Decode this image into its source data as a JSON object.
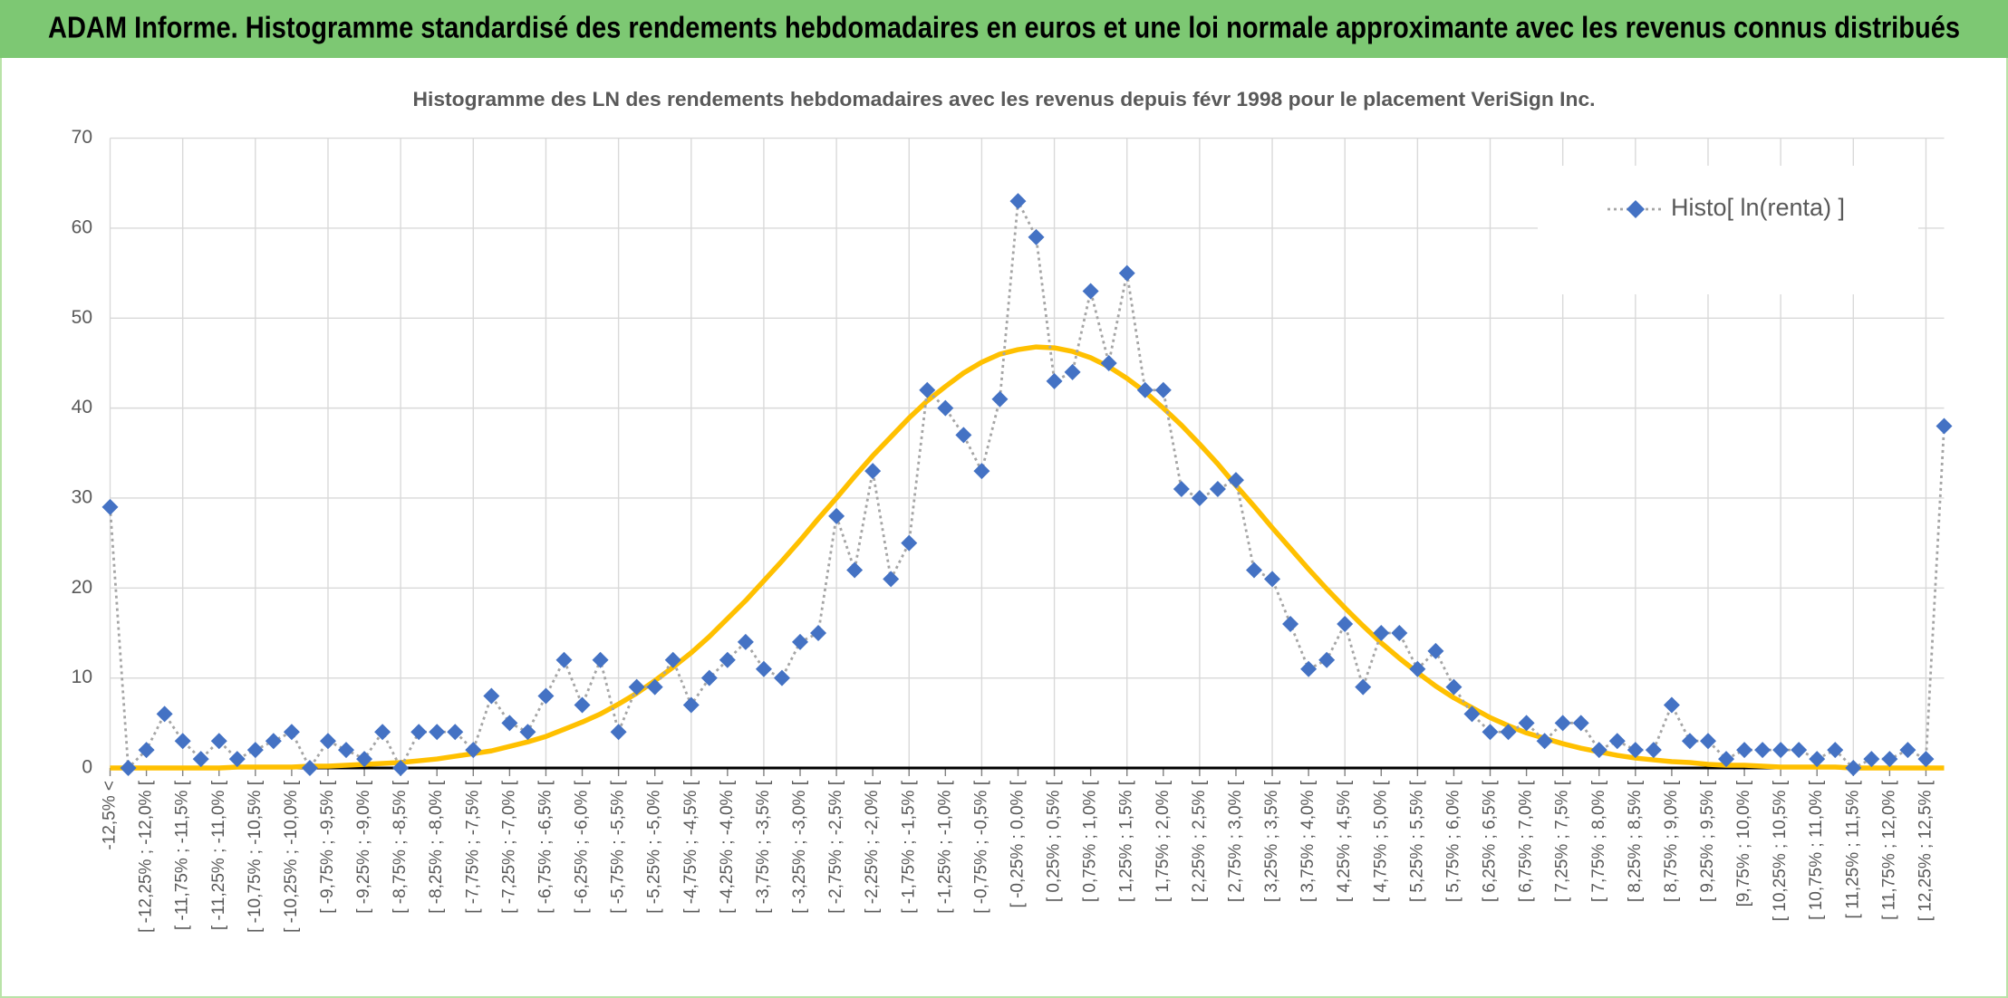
{
  "header": {
    "title": "ADAM Informe. Histogramme standardisé des rendements hebdomadaires en euros et une loi normale approximante avec les revenus connus distribués"
  },
  "chart_data": {
    "type": "line",
    "title": "Histogramme des LN des rendements hebdomadaires avec les revenus depuis févr 1998 pour le placement VeriSign Inc.",
    "categories": [
      "-12,5% <",
      null,
      "[ -12,25% ; -12,0% [",
      null,
      "[ -11,75% ; -11,5% [",
      null,
      "[ -11,25% ; -11,0% [",
      null,
      "[ -10,75% ; -10,5% [",
      null,
      "[ -10,25% ; -10,0% [",
      null,
      "[ -9,75% ; -9,5% [",
      null,
      "[ -9,25% ; -9,0% [",
      null,
      "[ -8,75% ; -8,5% [",
      null,
      "[ -8,25% ; -8,0% [",
      null,
      "[ -7,75% ; -7,5% [",
      null,
      "[ -7,25% ; -7,0% [",
      null,
      "[ -6,75% ; -6,5% [",
      null,
      "[ -6,25% ; -6,0% [",
      null,
      "[ -5,75% ; -5,5% [",
      null,
      "[ -5,25% ; -5,0% [",
      null,
      "[ -4,75% ; -4,5% [",
      null,
      "[ -4,25% ; -4,0% [",
      null,
      "[ -3,75% ; -3,5% [",
      null,
      "[ -3,25% ; -3,0% [",
      null,
      "[ -2,75% ; -2,5% [",
      null,
      "[ -2,25% ; -2,0% [",
      null,
      "[ -1,75% ; -1,5% [",
      null,
      "[ -1,25% ; -1,0% [",
      null,
      "[ -0,75% ; -0,5% [",
      null,
      "[ -0,25% ; 0,0% [",
      null,
      "[ 0,25% ; 0,5% [",
      null,
      "[ 0,75% ; 1,0% [",
      null,
      "[ 1,25% ; 1,5% [",
      null,
      "[ 1,75% ; 2,0% [",
      null,
      "[ 2,25% ; 2,5% [",
      null,
      "[ 2,75% ; 3,0% [",
      null,
      "[ 3,25% ; 3,5% [",
      null,
      "[ 3,75% ; 4,0% [",
      null,
      "[ 4,25% ; 4,5% [",
      null,
      "[ 4,75% ; 5,0% [",
      null,
      "[ 5,25% ; 5,5% [",
      null,
      "[ 5,75% ; 6,0% [",
      null,
      "[ 6,25% ; 6,5% [",
      null,
      "[ 6,75% ; 7,0% [",
      null,
      "[ 7,25% ; 7,5% [",
      null,
      "[ 7,75% ; 8,0% [",
      null,
      "[ 8,25% ; 8,5% [",
      null,
      "[ 8,75% ; 9,0% [",
      null,
      "[ 9,25% ; 9,5% [",
      null,
      "[9,75% ; 10,0% [",
      null,
      "[ 10,25% ; 10,5% [",
      null,
      "[ 10,75% ; 11,0% [",
      null,
      "[ 11,25% ; 11,5% [",
      null,
      "[ 11,75% ; 12,0% [",
      null,
      "[ 12,25% ; 12,5% [",
      null
    ],
    "series": [
      {
        "name": "Histo[ ln(renta) ]",
        "color": "#4472c4",
        "line_color": "#a5a5a5",
        "marker": "diamond",
        "values": [
          29,
          0,
          2,
          6,
          3,
          1,
          3,
          1,
          2,
          3,
          4,
          0,
          3,
          2,
          1,
          4,
          0,
          4,
          4,
          4,
          2,
          8,
          5,
          4,
          8,
          12,
          7,
          12,
          4,
          9,
          9,
          12,
          7,
          10,
          12,
          14,
          11,
          10,
          14,
          15,
          28,
          22,
          33,
          21,
          25,
          42,
          40,
          37,
          33,
          41,
          63,
          59,
          43,
          44,
          53,
          45,
          55,
          42,
          42,
          31,
          30,
          31,
          32,
          22,
          21,
          16,
          11,
          12,
          16,
          9,
          15,
          15,
          11,
          13,
          9,
          6,
          4,
          4,
          5,
          3,
          5,
          5,
          2,
          3,
          2,
          2,
          7,
          3,
          3,
          1,
          2,
          2,
          2,
          2,
          1,
          2,
          0,
          1,
          1,
          2,
          1,
          38
        ]
      },
      {
        "color": "#ffc000",
        "values": [
          0,
          0,
          0,
          0,
          0,
          0,
          0,
          0.1,
          0.1,
          0.1,
          0.1,
          0.2,
          0.2,
          0.3,
          0.4,
          0.5,
          0.6,
          0.8,
          1.0,
          1.3,
          1.6,
          1.9,
          2.4,
          2.9,
          3.5,
          4.3,
          5.1,
          6.0,
          7.1,
          8.3,
          9.7,
          11.2,
          12.8,
          14.6,
          16.6,
          18.6,
          20.8,
          23.0,
          25.3,
          27.7,
          30.0,
          32.4,
          34.7,
          36.8,
          38.9,
          40.8,
          42.4,
          43.9,
          45.1,
          46.0,
          46.5,
          46.8,
          46.7,
          46.3,
          45.6,
          44.6,
          43.3,
          41.8,
          40.0,
          38.1,
          36.0,
          33.8,
          31.4,
          29.1,
          26.7,
          24.4,
          22.1,
          19.9,
          17.8,
          15.8,
          13.9,
          12.2,
          10.6,
          9.1,
          7.8,
          6.7,
          5.6,
          4.7,
          3.9,
          3.3,
          2.7,
          2.2,
          1.8,
          1.4,
          1.1,
          0.9,
          0.7,
          0.6,
          0.4,
          0.3,
          0.3,
          0.2,
          0.1,
          0.1,
          0.1,
          0.1,
          0,
          0,
          0,
          0,
          0,
          0
        ]
      }
    ],
    "ylim": [
      0,
      70
    ],
    "yticks": [
      0,
      10,
      20,
      30,
      40,
      50,
      60,
      70
    ],
    "grid": true,
    "legend": "upper right"
  }
}
